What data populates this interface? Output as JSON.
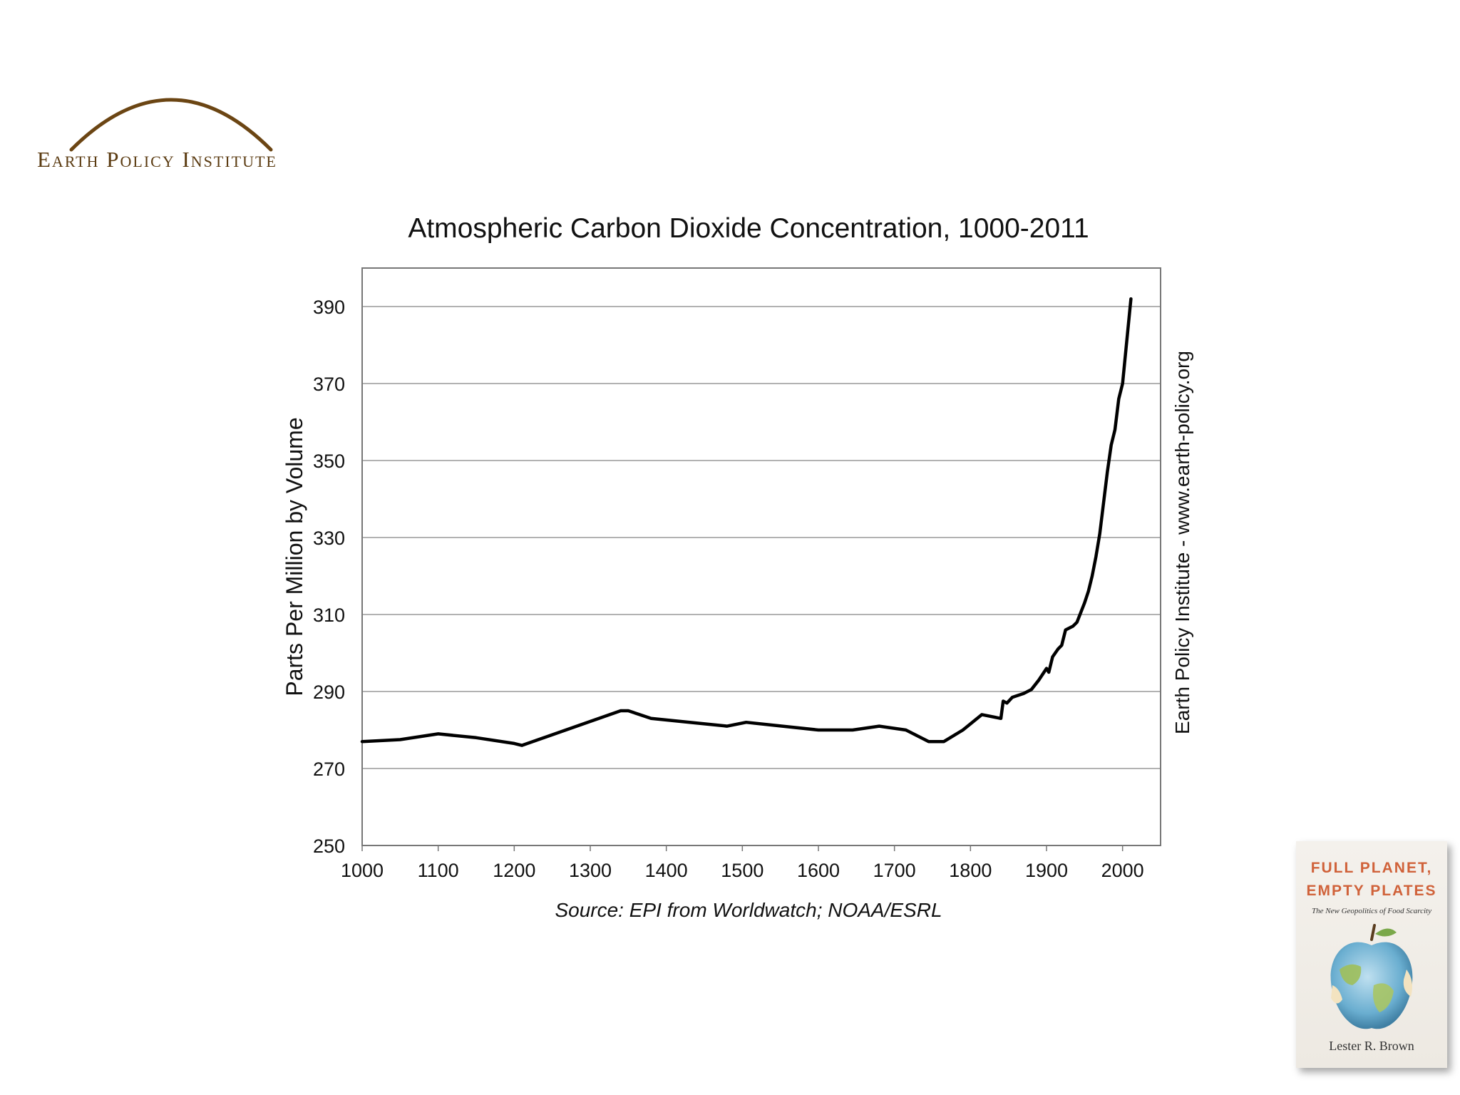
{
  "logo": {
    "text": "Earth Policy Institute",
    "arc_color": "#6b4513"
  },
  "chart_data": {
    "type": "line",
    "title": "Atmospheric Carbon Dioxide Concentration, 1000-2011",
    "xlabel": "",
    "ylabel": "Parts Per Million by Volume",
    "xlim": [
      1000,
      2050
    ],
    "ylim": [
      250,
      400
    ],
    "xticks": [
      1000,
      1100,
      1200,
      1300,
      1400,
      1500,
      1600,
      1700,
      1800,
      1900,
      2000
    ],
    "yticks": [
      250,
      270,
      290,
      310,
      330,
      350,
      370,
      390
    ],
    "grid": true,
    "line_color": "#000000",
    "source": "Source: EPI from Worldwatch; NOAA/ESRL",
    "watermark": "Earth Policy Institute - www.earth-policy.org",
    "series": [
      {
        "x": [
          1000,
          1050,
          1100,
          1150,
          1200,
          1210,
          1340,
          1350,
          1380,
          1480,
          1505,
          1600,
          1645,
          1680,
          1715,
          1745,
          1765,
          1790,
          1815,
          1840,
          1843,
          1848,
          1855,
          1870,
          1880,
          1890,
          1900,
          1903,
          1908,
          1915,
          1920,
          1925,
          1935,
          1940,
          1945,
          1950,
          1955,
          1960,
          1965,
          1970,
          1975,
          1980,
          1985,
          1990,
          1995,
          2000,
          2005,
          2011
        ],
        "y": [
          277,
          277.5,
          279,
          278,
          276.5,
          276,
          285,
          285,
          283,
          281,
          282,
          280,
          280,
          281,
          280,
          277,
          277,
          280,
          284,
          283,
          287.5,
          287,
          288.5,
          289.5,
          290.5,
          293,
          296,
          295,
          299,
          301,
          302,
          306,
          307,
          308,
          310.5,
          313,
          316,
          320,
          325,
          331,
          339,
          347,
          354,
          358,
          366,
          370,
          380,
          392
        ]
      }
    ]
  },
  "book": {
    "title_line1": "FULL PLANET,",
    "title_line2": "EMPTY PLATES",
    "subtitle": "The New Geopolitics of Food Scarcity",
    "author": "Lester R. Brown",
    "title_color": "#d0623a"
  }
}
